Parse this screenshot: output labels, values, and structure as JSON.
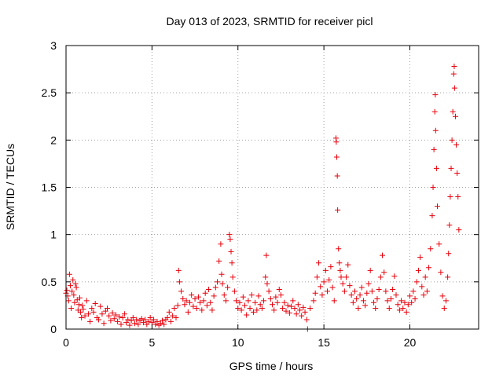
{
  "chart_data": {
    "type": "scatter",
    "title": "Day 013 of 2023, SRMTID for receiver picl",
    "xlabel": "GPS time / hours",
    "ylabel": "SRMTID / TECUs",
    "xlim": [
      0,
      24
    ],
    "ylim": [
      0,
      3
    ],
    "x_ticks": [
      0,
      5,
      10,
      15,
      20
    ],
    "x_tick_labels": [
      "0",
      "5",
      "10",
      "15",
      "20"
    ],
    "y_ticks": [
      0,
      0.5,
      1,
      1.5,
      2,
      2.5,
      3
    ],
    "y_tick_labels": [
      "0",
      "0.5",
      "1",
      "1.5",
      "2",
      "2.5",
      "3"
    ],
    "grid": true,
    "marker": "plus",
    "color": "#e8000b",
    "series": [
      {
        "name": "SRMTID",
        "points": [
          [
            0.0,
            0.38
          ],
          [
            0.05,
            0.41
          ],
          [
            0.1,
            0.35
          ],
          [
            0.15,
            0.3
          ],
          [
            0.2,
            0.58
          ],
          [
            0.25,
            0.46
          ],
          [
            0.3,
            0.22
          ],
          [
            0.35,
            0.4
          ],
          [
            0.4,
            0.52
          ],
          [
            0.45,
            0.36
          ],
          [
            0.5,
            0.28
          ],
          [
            0.55,
            0.48
          ],
          [
            0.6,
            0.44
          ],
          [
            0.65,
            0.31
          ],
          [
            0.7,
            0.2
          ],
          [
            0.75,
            0.26
          ],
          [
            0.8,
            0.33
          ],
          [
            0.85,
            0.18
          ],
          [
            0.9,
            0.12
          ],
          [
            0.95,
            0.25
          ],
          [
            1.0,
            0.21
          ],
          [
            1.1,
            0.14
          ],
          [
            1.2,
            0.3
          ],
          [
            1.3,
            0.16
          ],
          [
            1.4,
            0.08
          ],
          [
            1.5,
            0.22
          ],
          [
            1.6,
            0.18
          ],
          [
            1.7,
            0.27
          ],
          [
            1.8,
            0.12
          ],
          [
            1.9,
            0.1
          ],
          [
            2.0,
            0.24
          ],
          [
            2.1,
            0.16
          ],
          [
            2.2,
            0.06
          ],
          [
            2.3,
            0.19
          ],
          [
            2.4,
            0.22
          ],
          [
            2.5,
            0.14
          ],
          [
            2.6,
            0.09
          ],
          [
            2.7,
            0.17
          ],
          [
            2.8,
            0.11
          ],
          [
            2.9,
            0.15
          ],
          [
            3.0,
            0.08
          ],
          [
            3.1,
            0.13
          ],
          [
            3.2,
            0.05
          ],
          [
            3.3,
            0.12
          ],
          [
            3.4,
            0.16
          ],
          [
            3.5,
            0.07
          ],
          [
            3.6,
            0.1
          ],
          [
            3.7,
            0.04
          ],
          [
            3.8,
            0.09
          ],
          [
            3.9,
            0.12
          ],
          [
            4.0,
            0.06
          ],
          [
            4.1,
            0.1
          ],
          [
            4.2,
            0.05
          ],
          [
            4.3,
            0.09
          ],
          [
            4.4,
            0.11
          ],
          [
            4.5,
            0.07
          ],
          [
            4.6,
            0.1
          ],
          [
            4.7,
            0.05
          ],
          [
            4.8,
            0.08
          ],
          [
            4.9,
            0.12
          ],
          [
            5.0,
            0.07
          ],
          [
            5.1,
            0.1
          ],
          [
            5.2,
            0.05
          ],
          [
            5.3,
            0.08
          ],
          [
            5.4,
            0.04
          ],
          [
            5.5,
            0.06
          ],
          [
            5.6,
            0.09
          ],
          [
            5.7,
            0.05
          ],
          [
            5.8,
            0.1
          ],
          [
            5.9,
            0.12
          ],
          [
            6.0,
            0.18
          ],
          [
            6.1,
            0.08
          ],
          [
            6.2,
            0.14
          ],
          [
            6.3,
            0.22
          ],
          [
            6.4,
            0.12
          ],
          [
            6.5,
            0.25
          ],
          [
            6.55,
            0.62
          ],
          [
            6.6,
            0.5
          ],
          [
            6.7,
            0.4
          ],
          [
            6.8,
            0.32
          ],
          [
            6.9,
            0.26
          ],
          [
            7.0,
            0.3
          ],
          [
            7.1,
            0.18
          ],
          [
            7.2,
            0.28
          ],
          [
            7.3,
            0.36
          ],
          [
            7.4,
            0.24
          ],
          [
            7.5,
            0.32
          ],
          [
            7.6,
            0.22
          ],
          [
            7.7,
            0.34
          ],
          [
            7.8,
            0.28
          ],
          [
            7.9,
            0.2
          ],
          [
            8.0,
            0.3
          ],
          [
            8.1,
            0.38
          ],
          [
            8.2,
            0.25
          ],
          [
            8.3,
            0.42
          ],
          [
            8.4,
            0.28
          ],
          [
            8.5,
            0.2
          ],
          [
            8.6,
            0.35
          ],
          [
            8.7,
            0.44
          ],
          [
            8.8,
            0.5
          ],
          [
            8.9,
            0.72
          ],
          [
            9.0,
            0.9
          ],
          [
            9.05,
            0.58
          ],
          [
            9.1,
            0.48
          ],
          [
            9.2,
            0.36
          ],
          [
            9.3,
            0.3
          ],
          [
            9.4,
            0.44
          ],
          [
            9.5,
            1.0
          ],
          [
            9.55,
            0.95
          ],
          [
            9.6,
            0.82
          ],
          [
            9.65,
            0.7
          ],
          [
            9.7,
            0.55
          ],
          [
            9.8,
            0.4
          ],
          [
            9.9,
            0.3
          ],
          [
            10.0,
            0.22
          ],
          [
            10.1,
            0.28
          ],
          [
            10.2,
            0.2
          ],
          [
            10.3,
            0.34
          ],
          [
            10.4,
            0.25
          ],
          [
            10.5,
            0.15
          ],
          [
            10.6,
            0.3
          ],
          [
            10.7,
            0.22
          ],
          [
            10.8,
            0.36
          ],
          [
            10.9,
            0.18
          ],
          [
            11.0,
            0.28
          ],
          [
            11.1,
            0.2
          ],
          [
            11.2,
            0.35
          ],
          [
            11.3,
            0.26
          ],
          [
            11.4,
            0.22
          ],
          [
            11.5,
            0.3
          ],
          [
            11.6,
            0.55
          ],
          [
            11.65,
            0.78
          ],
          [
            11.7,
            0.48
          ],
          [
            11.8,
            0.4
          ],
          [
            11.9,
            0.32
          ],
          [
            12.0,
            0.26
          ],
          [
            12.1,
            0.2
          ],
          [
            12.2,
            0.34
          ],
          [
            12.3,
            0.28
          ],
          [
            12.4,
            0.42
          ],
          [
            12.5,
            0.36
          ],
          [
            12.6,
            0.22
          ],
          [
            12.7,
            0.28
          ],
          [
            12.8,
            0.19
          ],
          [
            12.9,
            0.25
          ],
          [
            13.0,
            0.17
          ],
          [
            13.1,
            0.24
          ],
          [
            13.2,
            0.3
          ],
          [
            13.3,
            0.22
          ],
          [
            13.4,
            0.16
          ],
          [
            13.5,
            0.26
          ],
          [
            13.6,
            0.2
          ],
          [
            13.7,
            0.14
          ],
          [
            13.8,
            0.23
          ],
          [
            13.9,
            0.18
          ],
          [
            14.0,
            0.1
          ],
          [
            14.05,
            0.0
          ],
          [
            14.2,
            0.22
          ],
          [
            14.4,
            0.3
          ],
          [
            14.5,
            0.38
          ],
          [
            14.6,
            0.55
          ],
          [
            14.7,
            0.7
          ],
          [
            14.8,
            0.45
          ],
          [
            14.9,
            0.36
          ],
          [
            15.0,
            0.5
          ],
          [
            15.1,
            0.62
          ],
          [
            15.2,
            0.4
          ],
          [
            15.3,
            0.52
          ],
          [
            15.4,
            0.66
          ],
          [
            15.5,
            0.44
          ],
          [
            15.6,
            0.3
          ],
          [
            15.7,
            2.02
          ],
          [
            15.72,
            1.98
          ],
          [
            15.75,
            1.82
          ],
          [
            15.78,
            1.62
          ],
          [
            15.8,
            1.26
          ],
          [
            15.85,
            0.85
          ],
          [
            15.9,
            0.7
          ],
          [
            15.95,
            0.62
          ],
          [
            16.0,
            0.55
          ],
          [
            16.1,
            0.48
          ],
          [
            16.2,
            0.4
          ],
          [
            16.3,
            0.55
          ],
          [
            16.4,
            0.68
          ],
          [
            16.5,
            0.46
          ],
          [
            16.6,
            0.36
          ],
          [
            16.7,
            0.28
          ],
          [
            16.8,
            0.4
          ],
          [
            16.9,
            0.32
          ],
          [
            17.0,
            0.22
          ],
          [
            17.1,
            0.36
          ],
          [
            17.2,
            0.44
          ],
          [
            17.3,
            0.3
          ],
          [
            17.4,
            0.25
          ],
          [
            17.5,
            0.38
          ],
          [
            17.6,
            0.48
          ],
          [
            17.7,
            0.62
          ],
          [
            17.8,
            0.4
          ],
          [
            17.9,
            0.28
          ],
          [
            18.0,
            0.22
          ],
          [
            18.1,
            0.32
          ],
          [
            18.2,
            0.42
          ],
          [
            18.3,
            0.55
          ],
          [
            18.4,
            0.78
          ],
          [
            18.5,
            0.6
          ],
          [
            18.6,
            0.4
          ],
          [
            18.7,
            0.3
          ],
          [
            18.8,
            0.22
          ],
          [
            18.9,
            0.32
          ],
          [
            19.0,
            0.42
          ],
          [
            19.1,
            0.56
          ],
          [
            19.2,
            0.36
          ],
          [
            19.3,
            0.26
          ],
          [
            19.4,
            0.2
          ],
          [
            19.5,
            0.3
          ],
          [
            19.6,
            0.22
          ],
          [
            19.7,
            0.28
          ],
          [
            19.8,
            0.18
          ],
          [
            19.9,
            0.26
          ],
          [
            20.0,
            0.35
          ],
          [
            20.1,
            0.28
          ],
          [
            20.2,
            0.4
          ],
          [
            20.3,
            0.32
          ],
          [
            20.4,
            0.5
          ],
          [
            20.5,
            0.62
          ],
          [
            20.6,
            0.76
          ],
          [
            20.7,
            0.45
          ],
          [
            20.8,
            0.36
          ],
          [
            20.9,
            0.55
          ],
          [
            21.0,
            0.4
          ],
          [
            21.1,
            0.65
          ],
          [
            21.2,
            0.85
          ],
          [
            21.3,
            1.2
          ],
          [
            21.35,
            1.5
          ],
          [
            21.4,
            1.9
          ],
          [
            21.45,
            2.3
          ],
          [
            21.48,
            2.48
          ],
          [
            21.5,
            2.1
          ],
          [
            21.55,
            1.7
          ],
          [
            21.6,
            1.3
          ],
          [
            21.7,
            0.9
          ],
          [
            21.8,
            0.6
          ],
          [
            21.9,
            0.35
          ],
          [
            22.0,
            0.22
          ],
          [
            22.1,
            0.3
          ],
          [
            22.2,
            0.55
          ],
          [
            22.25,
            0.8
          ],
          [
            22.3,
            1.1
          ],
          [
            22.35,
            1.4
          ],
          [
            22.4,
            1.7
          ],
          [
            22.45,
            2.0
          ],
          [
            22.5,
            2.3
          ],
          [
            22.55,
            2.7
          ],
          [
            22.58,
            2.78
          ],
          [
            22.6,
            2.55
          ],
          [
            22.65,
            2.25
          ],
          [
            22.7,
            1.95
          ],
          [
            22.75,
            1.65
          ],
          [
            22.8,
            1.4
          ],
          [
            22.85,
            1.05
          ]
        ]
      }
    ]
  }
}
